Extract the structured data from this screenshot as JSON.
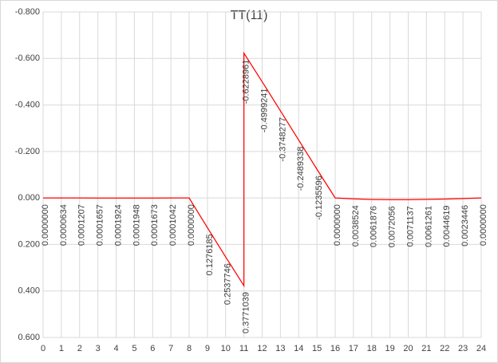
{
  "chart_data": {
    "type": "line",
    "title": "TT(11)",
    "x": [
      0,
      1,
      2,
      3,
      4,
      5,
      6,
      7,
      8,
      9,
      10,
      11,
      11,
      12,
      13,
      14,
      15,
      16,
      17,
      18,
      19,
      20,
      21,
      22,
      23,
      24
    ],
    "series": [
      {
        "color": "#ff0000",
        "values": [
          0.0,
          6.34e-05,
          0.0001207,
          0.0001657,
          0.0001924,
          0.0001948,
          0.0001673,
          0.0001042,
          0.0,
          0.1276185,
          0.2537746,
          0.3771039,
          -0.6228961,
          -0.4999241,
          -0.3748277,
          -0.2489338,
          -0.1235596,
          0.0,
          0.0038524,
          0.0061876,
          0.0072056,
          0.0071137,
          0.0061261,
          0.0044619,
          0.0023446,
          0.0
        ],
        "value_labels": [
          "0.0000000",
          "0.0000634",
          "0.0001207",
          "0.0001657",
          "0.0001924",
          "0.0001948",
          "0.0001673",
          "0.0001042",
          "0.0000000",
          "0.1276185",
          "0.2537746",
          "0.3771039",
          "-0.6228961",
          "-0.4999241",
          "-0.3748277",
          "-0.2489338",
          "-0.1235596",
          "0.0000000",
          "0.0038524",
          "0.0061876",
          "0.0072056",
          "0.0071137",
          "0.0061261",
          "0.0044619",
          "0.0023446",
          "0.0000000"
        ]
      }
    ],
    "xlim": [
      0,
      24
    ],
    "xticks": [
      0,
      1,
      2,
      3,
      4,
      5,
      6,
      7,
      8,
      9,
      10,
      11,
      12,
      13,
      14,
      15,
      16,
      17,
      18,
      19,
      20,
      21,
      22,
      23,
      24
    ],
    "ylim": [
      -0.8,
      0.6
    ],
    "y_inverted": true,
    "yticks": [
      {
        "value": -0.8,
        "label": "-0.800"
      },
      {
        "value": -0.6,
        "label": "-0.600"
      },
      {
        "value": -0.4,
        "label": "-0.400"
      },
      {
        "value": -0.2,
        "label": "-0.200"
      },
      {
        "value": 0,
        "label": "0.000"
      },
      {
        "value": 0.2,
        "label": "0.200"
      },
      {
        "value": 0.4,
        "label": "0.400"
      },
      {
        "value": 0.6,
        "label": "0.600"
      }
    ],
    "grid": true
  }
}
